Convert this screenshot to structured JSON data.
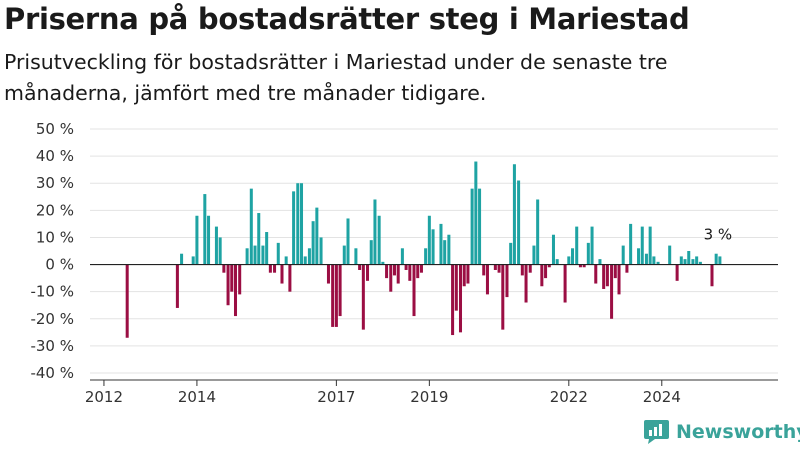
{
  "title": "Priserna på bostadsrätter steg i Mariestad",
  "subtitle": "Prisutveckling för bostadsrätter i Mariestad under de senaste tre månaderna, jämfört med tre månader tidigare.",
  "brand": {
    "name": "Newsworthy"
  },
  "colors": {
    "positive": "#1ea3a3",
    "negative": "#9b0e43",
    "axis": "#333333",
    "grid": "#e3e3e3"
  },
  "chart_data": {
    "type": "bar",
    "title": "Priserna på bostadsrätter steg i Mariestad",
    "subtitle": "Prisutveckling för bostadsrätter i Mariestad under de senaste tre månaderna, jämfört med tre månader tidigare.",
    "xlabel": "",
    "ylabel": "",
    "ylim": [
      -40,
      50
    ],
    "yticks": [
      -40,
      -30,
      -20,
      -10,
      0,
      10,
      20,
      30,
      40,
      50
    ],
    "ytick_labels": [
      "-40 %",
      "-30 %",
      "-20 %",
      "-10 %",
      "0 %",
      "10 %",
      "20 %",
      "30 %",
      "40 %",
      "50 %"
    ],
    "xlim": [
      2011.7,
      2026.5
    ],
    "xticks": [
      2012,
      2014,
      2017,
      2019,
      2022,
      2024
    ],
    "xtick_labels": [
      "2012",
      "2014",
      "2017",
      "2019",
      "2022",
      "2024"
    ],
    "grid": true,
    "annotation": {
      "text": "3 %",
      "x": 2025.25,
      "y": 3
    },
    "points": [
      {
        "x": 2012.5,
        "y": -27
      },
      {
        "x": 2013.58,
        "y": -16
      },
      {
        "x": 2013.67,
        "y": 4
      },
      {
        "x": 2013.92,
        "y": 3
      },
      {
        "x": 2014.0,
        "y": 18
      },
      {
        "x": 2014.17,
        "y": 26
      },
      {
        "x": 2014.25,
        "y": 18
      },
      {
        "x": 2014.42,
        "y": 14
      },
      {
        "x": 2014.5,
        "y": 10
      },
      {
        "x": 2014.58,
        "y": -3
      },
      {
        "x": 2014.67,
        "y": -15
      },
      {
        "x": 2014.75,
        "y": -10
      },
      {
        "x": 2014.83,
        "y": -19
      },
      {
        "x": 2014.92,
        "y": -11
      },
      {
        "x": 2015.08,
        "y": 6
      },
      {
        "x": 2015.17,
        "y": 28
      },
      {
        "x": 2015.25,
        "y": 7
      },
      {
        "x": 2015.33,
        "y": 19
      },
      {
        "x": 2015.42,
        "y": 7
      },
      {
        "x": 2015.5,
        "y": 12
      },
      {
        "x": 2015.58,
        "y": -3
      },
      {
        "x": 2015.67,
        "y": -3
      },
      {
        "x": 2015.75,
        "y": 8
      },
      {
        "x": 2015.83,
        "y": -7
      },
      {
        "x": 2015.92,
        "y": 3
      },
      {
        "x": 2016.0,
        "y": -10
      },
      {
        "x": 2016.08,
        "y": 27
      },
      {
        "x": 2016.17,
        "y": 30
      },
      {
        "x": 2016.25,
        "y": 30
      },
      {
        "x": 2016.33,
        "y": 3
      },
      {
        "x": 2016.42,
        "y": 6
      },
      {
        "x": 2016.5,
        "y": 16
      },
      {
        "x": 2016.58,
        "y": 21
      },
      {
        "x": 2016.67,
        "y": 10
      },
      {
        "x": 2016.83,
        "y": -7
      },
      {
        "x": 2016.92,
        "y": -23
      },
      {
        "x": 2017.0,
        "y": -23
      },
      {
        "x": 2017.08,
        "y": -19
      },
      {
        "x": 2017.17,
        "y": 7
      },
      {
        "x": 2017.25,
        "y": 17
      },
      {
        "x": 2017.42,
        "y": 6
      },
      {
        "x": 2017.5,
        "y": -2
      },
      {
        "x": 2017.58,
        "y": -24
      },
      {
        "x": 2017.67,
        "y": -6
      },
      {
        "x": 2017.75,
        "y": 9
      },
      {
        "x": 2017.83,
        "y": 24
      },
      {
        "x": 2017.92,
        "y": 18
      },
      {
        "x": 2018.0,
        "y": 1
      },
      {
        "x": 2018.08,
        "y": -5
      },
      {
        "x": 2018.17,
        "y": -10
      },
      {
        "x": 2018.25,
        "y": -4
      },
      {
        "x": 2018.33,
        "y": -7
      },
      {
        "x": 2018.42,
        "y": 6
      },
      {
        "x": 2018.5,
        "y": -2
      },
      {
        "x": 2018.58,
        "y": -6
      },
      {
        "x": 2018.67,
        "y": -19
      },
      {
        "x": 2018.75,
        "y": -5
      },
      {
        "x": 2018.83,
        "y": -3
      },
      {
        "x": 2018.92,
        "y": 6
      },
      {
        "x": 2019.0,
        "y": 18
      },
      {
        "x": 2019.08,
        "y": 13
      },
      {
        "x": 2019.25,
        "y": 15
      },
      {
        "x": 2019.33,
        "y": 9
      },
      {
        "x": 2019.42,
        "y": 11
      },
      {
        "x": 2019.5,
        "y": -26
      },
      {
        "x": 2019.58,
        "y": -17
      },
      {
        "x": 2019.67,
        "y": -25
      },
      {
        "x": 2019.75,
        "y": -8
      },
      {
        "x": 2019.83,
        "y": -7
      },
      {
        "x": 2019.92,
        "y": 28
      },
      {
        "x": 2020.0,
        "y": 38
      },
      {
        "x": 2020.08,
        "y": 28
      },
      {
        "x": 2020.17,
        "y": -4
      },
      {
        "x": 2020.25,
        "y": -11
      },
      {
        "x": 2020.42,
        "y": -2
      },
      {
        "x": 2020.5,
        "y": -3
      },
      {
        "x": 2020.58,
        "y": -24
      },
      {
        "x": 2020.67,
        "y": -12
      },
      {
        "x": 2020.75,
        "y": 8
      },
      {
        "x": 2020.83,
        "y": 37
      },
      {
        "x": 2020.92,
        "y": 31
      },
      {
        "x": 2021.0,
        "y": -4
      },
      {
        "x": 2021.08,
        "y": -14
      },
      {
        "x": 2021.17,
        "y": -3
      },
      {
        "x": 2021.25,
        "y": 7
      },
      {
        "x": 2021.33,
        "y": 24
      },
      {
        "x": 2021.42,
        "y": -8
      },
      {
        "x": 2021.5,
        "y": -5
      },
      {
        "x": 2021.58,
        "y": -1
      },
      {
        "x": 2021.67,
        "y": 11
      },
      {
        "x": 2021.75,
        "y": 2
      },
      {
        "x": 2021.92,
        "y": -14
      },
      {
        "x": 2022.0,
        "y": 3
      },
      {
        "x": 2022.08,
        "y": 6
      },
      {
        "x": 2022.17,
        "y": 14
      },
      {
        "x": 2022.25,
        "y": -1
      },
      {
        "x": 2022.33,
        "y": -1
      },
      {
        "x": 2022.42,
        "y": 8
      },
      {
        "x": 2022.5,
        "y": 14
      },
      {
        "x": 2022.58,
        "y": -7
      },
      {
        "x": 2022.67,
        "y": 2
      },
      {
        "x": 2022.75,
        "y": -9
      },
      {
        "x": 2022.83,
        "y": -8
      },
      {
        "x": 2022.92,
        "y": -20
      },
      {
        "x": 2023.0,
        "y": -5
      },
      {
        "x": 2023.08,
        "y": -11
      },
      {
        "x": 2023.17,
        "y": 7
      },
      {
        "x": 2023.25,
        "y": -3
      },
      {
        "x": 2023.33,
        "y": 15
      },
      {
        "x": 2023.5,
        "y": 6
      },
      {
        "x": 2023.58,
        "y": 14
      },
      {
        "x": 2023.67,
        "y": 4
      },
      {
        "x": 2023.75,
        "y": 14
      },
      {
        "x": 2023.83,
        "y": 3
      },
      {
        "x": 2023.92,
        "y": 1
      },
      {
        "x": 2024.17,
        "y": 7
      },
      {
        "x": 2024.33,
        "y": -6
      },
      {
        "x": 2024.42,
        "y": 3
      },
      {
        "x": 2024.5,
        "y": 2
      },
      {
        "x": 2024.58,
        "y": 5
      },
      {
        "x": 2024.67,
        "y": 2
      },
      {
        "x": 2024.75,
        "y": 3
      },
      {
        "x": 2024.83,
        "y": 1
      },
      {
        "x": 2025.08,
        "y": -8
      },
      {
        "x": 2025.17,
        "y": 4
      },
      {
        "x": 2025.25,
        "y": 3
      }
    ]
  }
}
